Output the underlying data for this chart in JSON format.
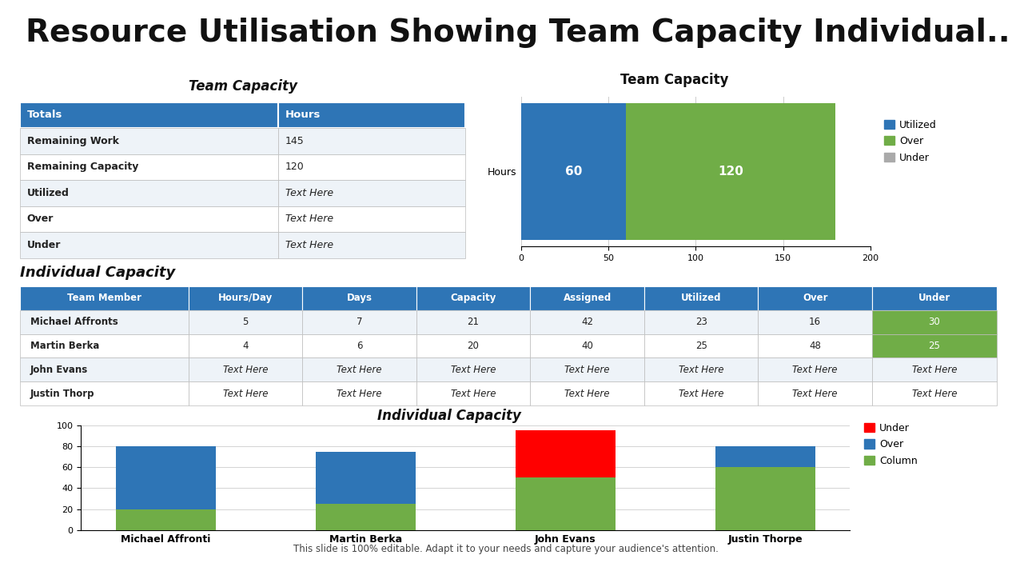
{
  "title": "Resource Utilisation Showing Team Capacity Individual...",
  "title_bg": "#d9d9d9",
  "team_cap_title": "Team Capacity",
  "team_cap_headers": [
    "Totals",
    "Hours"
  ],
  "team_cap_rows": [
    [
      "Remaining Work",
      "145"
    ],
    [
      "Remaining Capacity",
      "120"
    ],
    [
      "Utilized",
      "Text Here"
    ],
    [
      "Over",
      "Text Here"
    ],
    [
      "Under",
      "Text Here"
    ]
  ],
  "table_header_bg": "#2E75B6",
  "table_header_color": "#ffffff",
  "table_row_bg_odd": "#eef3f8",
  "table_row_bg_even": "#ffffff",
  "bar_chart_title": "Team Capacity",
  "bar_utilized": 60,
  "bar_over": 120,
  "bar_label_utilized": "60",
  "bar_label_over": "120",
  "bar_color_utilized": "#2E75B6",
  "bar_color_over": "#70AD47",
  "bar_color_under": "#aaaaaa",
  "bar_xlabel": "Hours",
  "bar_xlim": [
    0,
    200
  ],
  "bar_xticks": [
    0,
    50,
    100,
    150,
    200
  ],
  "ind_cap_title": "Individual Capacity",
  "ind_headers": [
    "Team Member",
    "Hours/Day",
    "Days",
    "Capacity",
    "Assigned",
    "Utilized",
    "Over",
    "Under"
  ],
  "ind_rows": [
    [
      "Michael Affronts",
      "5",
      "7",
      "21",
      "42",
      "23",
      "16",
      "30"
    ],
    [
      "Martin Berka",
      "4",
      "6",
      "20",
      "40",
      "25",
      "48",
      "25"
    ],
    [
      "John Evans",
      "Text Here",
      "Text Here",
      "Text Here",
      "Text Here",
      "Text Here",
      "Text Here",
      "Text Here"
    ],
    [
      "Justin Thorp",
      "Text Here",
      "Text Here",
      "Text Here",
      "Text Here",
      "Text Here",
      "Text Here",
      "Text Here"
    ]
  ],
  "ind_header_bg": "#2E75B6",
  "ind_header_color": "#ffffff",
  "ind_under_highlight_bg": "#70AD47",
  "ind_under_highlight_color": "#ffffff",
  "bar2_title": "Individual Capacity",
  "bar2_members": [
    "Michael Affronti",
    "Martin Berka",
    "John Evans",
    "Justin Thorpe"
  ],
  "bar2_column": [
    20,
    25,
    50,
    60
  ],
  "bar2_over": [
    60,
    50,
    0,
    20
  ],
  "bar2_under": [
    0,
    0,
    45,
    0
  ],
  "bar2_color_under": "#FF0000",
  "bar2_color_over": "#2E75B6",
  "bar2_color_column": "#70AD47",
  "bar2_ylim": [
    0,
    100
  ],
  "bar2_yticks": [
    0,
    20,
    40,
    60,
    80,
    100
  ],
  "footer": "This slide is 100% editable. Adapt it to your needs and capture your audience's attention."
}
